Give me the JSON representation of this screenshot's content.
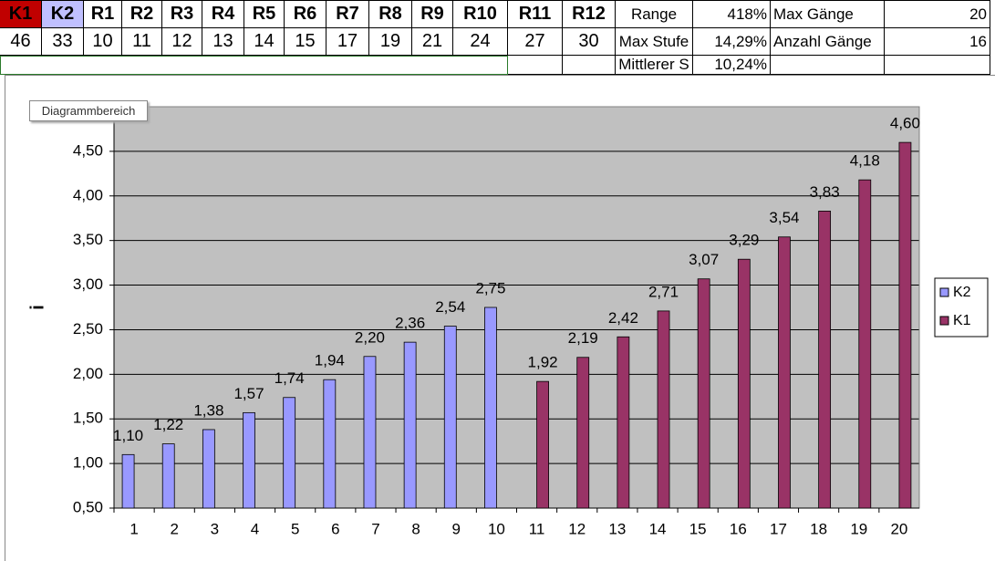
{
  "sheet": {
    "headers": [
      "K1",
      "K2",
      "R1",
      "R2",
      "R3",
      "R4",
      "R5",
      "R6",
      "R7",
      "R8",
      "R9",
      "R10",
      "R11",
      "R12"
    ],
    "values": [
      46,
      33,
      10,
      11,
      12,
      13,
      14,
      15,
      17,
      19,
      21,
      24,
      27,
      30
    ],
    "stats": [
      [
        "Range",
        "418%",
        "Max Gänge",
        20
      ],
      [
        "Max Stufe",
        "14,29%",
        "Anzahl Gänge",
        16
      ],
      [
        "Mittlerer S",
        "10,24%"
      ]
    ]
  },
  "tooltip": "Diagrammbereich",
  "chart_data": {
    "type": "bar",
    "y_label": "i",
    "categories": [
      1,
      2,
      3,
      4,
      5,
      6,
      7,
      8,
      9,
      10,
      11,
      12,
      13,
      14,
      15,
      16,
      17,
      18,
      19,
      20
    ],
    "series": [
      {
        "name": "K2",
        "color": "#9999ff",
        "values": [
          1.1,
          1.22,
          1.38,
          1.57,
          1.74,
          1.94,
          2.2,
          2.36,
          2.54,
          2.75,
          null,
          null,
          null,
          null,
          null,
          null,
          null,
          null,
          null,
          null
        ],
        "value_labels": [
          "1,10",
          "1,22",
          "1,38",
          "1,57",
          "1,74",
          "1,94",
          "2,20",
          "2,36",
          "2,54",
          "2,75",
          null,
          null,
          null,
          null,
          null,
          null,
          null,
          null,
          null,
          null
        ]
      },
      {
        "name": "K1",
        "color": "#993366",
        "values": [
          null,
          null,
          null,
          null,
          null,
          null,
          null,
          null,
          null,
          null,
          1.92,
          2.19,
          2.42,
          2.71,
          3.07,
          3.29,
          3.54,
          3.83,
          4.18,
          4.6
        ],
        "value_labels": [
          null,
          null,
          null,
          null,
          null,
          null,
          null,
          null,
          null,
          null,
          "1,92",
          "2,19",
          "2,42",
          "2,71",
          "3,07",
          "3,29",
          "3,54",
          "3,83",
          "4,18",
          "4,60"
        ]
      }
    ],
    "ylim": [
      0.5,
      5.0
    ],
    "yticks": [
      {
        "value": 0.5,
        "label": "0,50"
      },
      {
        "value": 1.0,
        "label": "1,00"
      },
      {
        "value": 1.5,
        "label": "1,50"
      },
      {
        "value": 2.0,
        "label": "2,00"
      },
      {
        "value": 2.5,
        "label": "2,50"
      },
      {
        "value": 3.0,
        "label": "3,00"
      },
      {
        "value": 3.5,
        "label": "3,50"
      },
      {
        "value": 4.0,
        "label": "4,00"
      },
      {
        "value": 4.5,
        "label": "4,50"
      }
    ],
    "grid": true,
    "plot_background": "#c0c0c0",
    "legend": "right"
  }
}
